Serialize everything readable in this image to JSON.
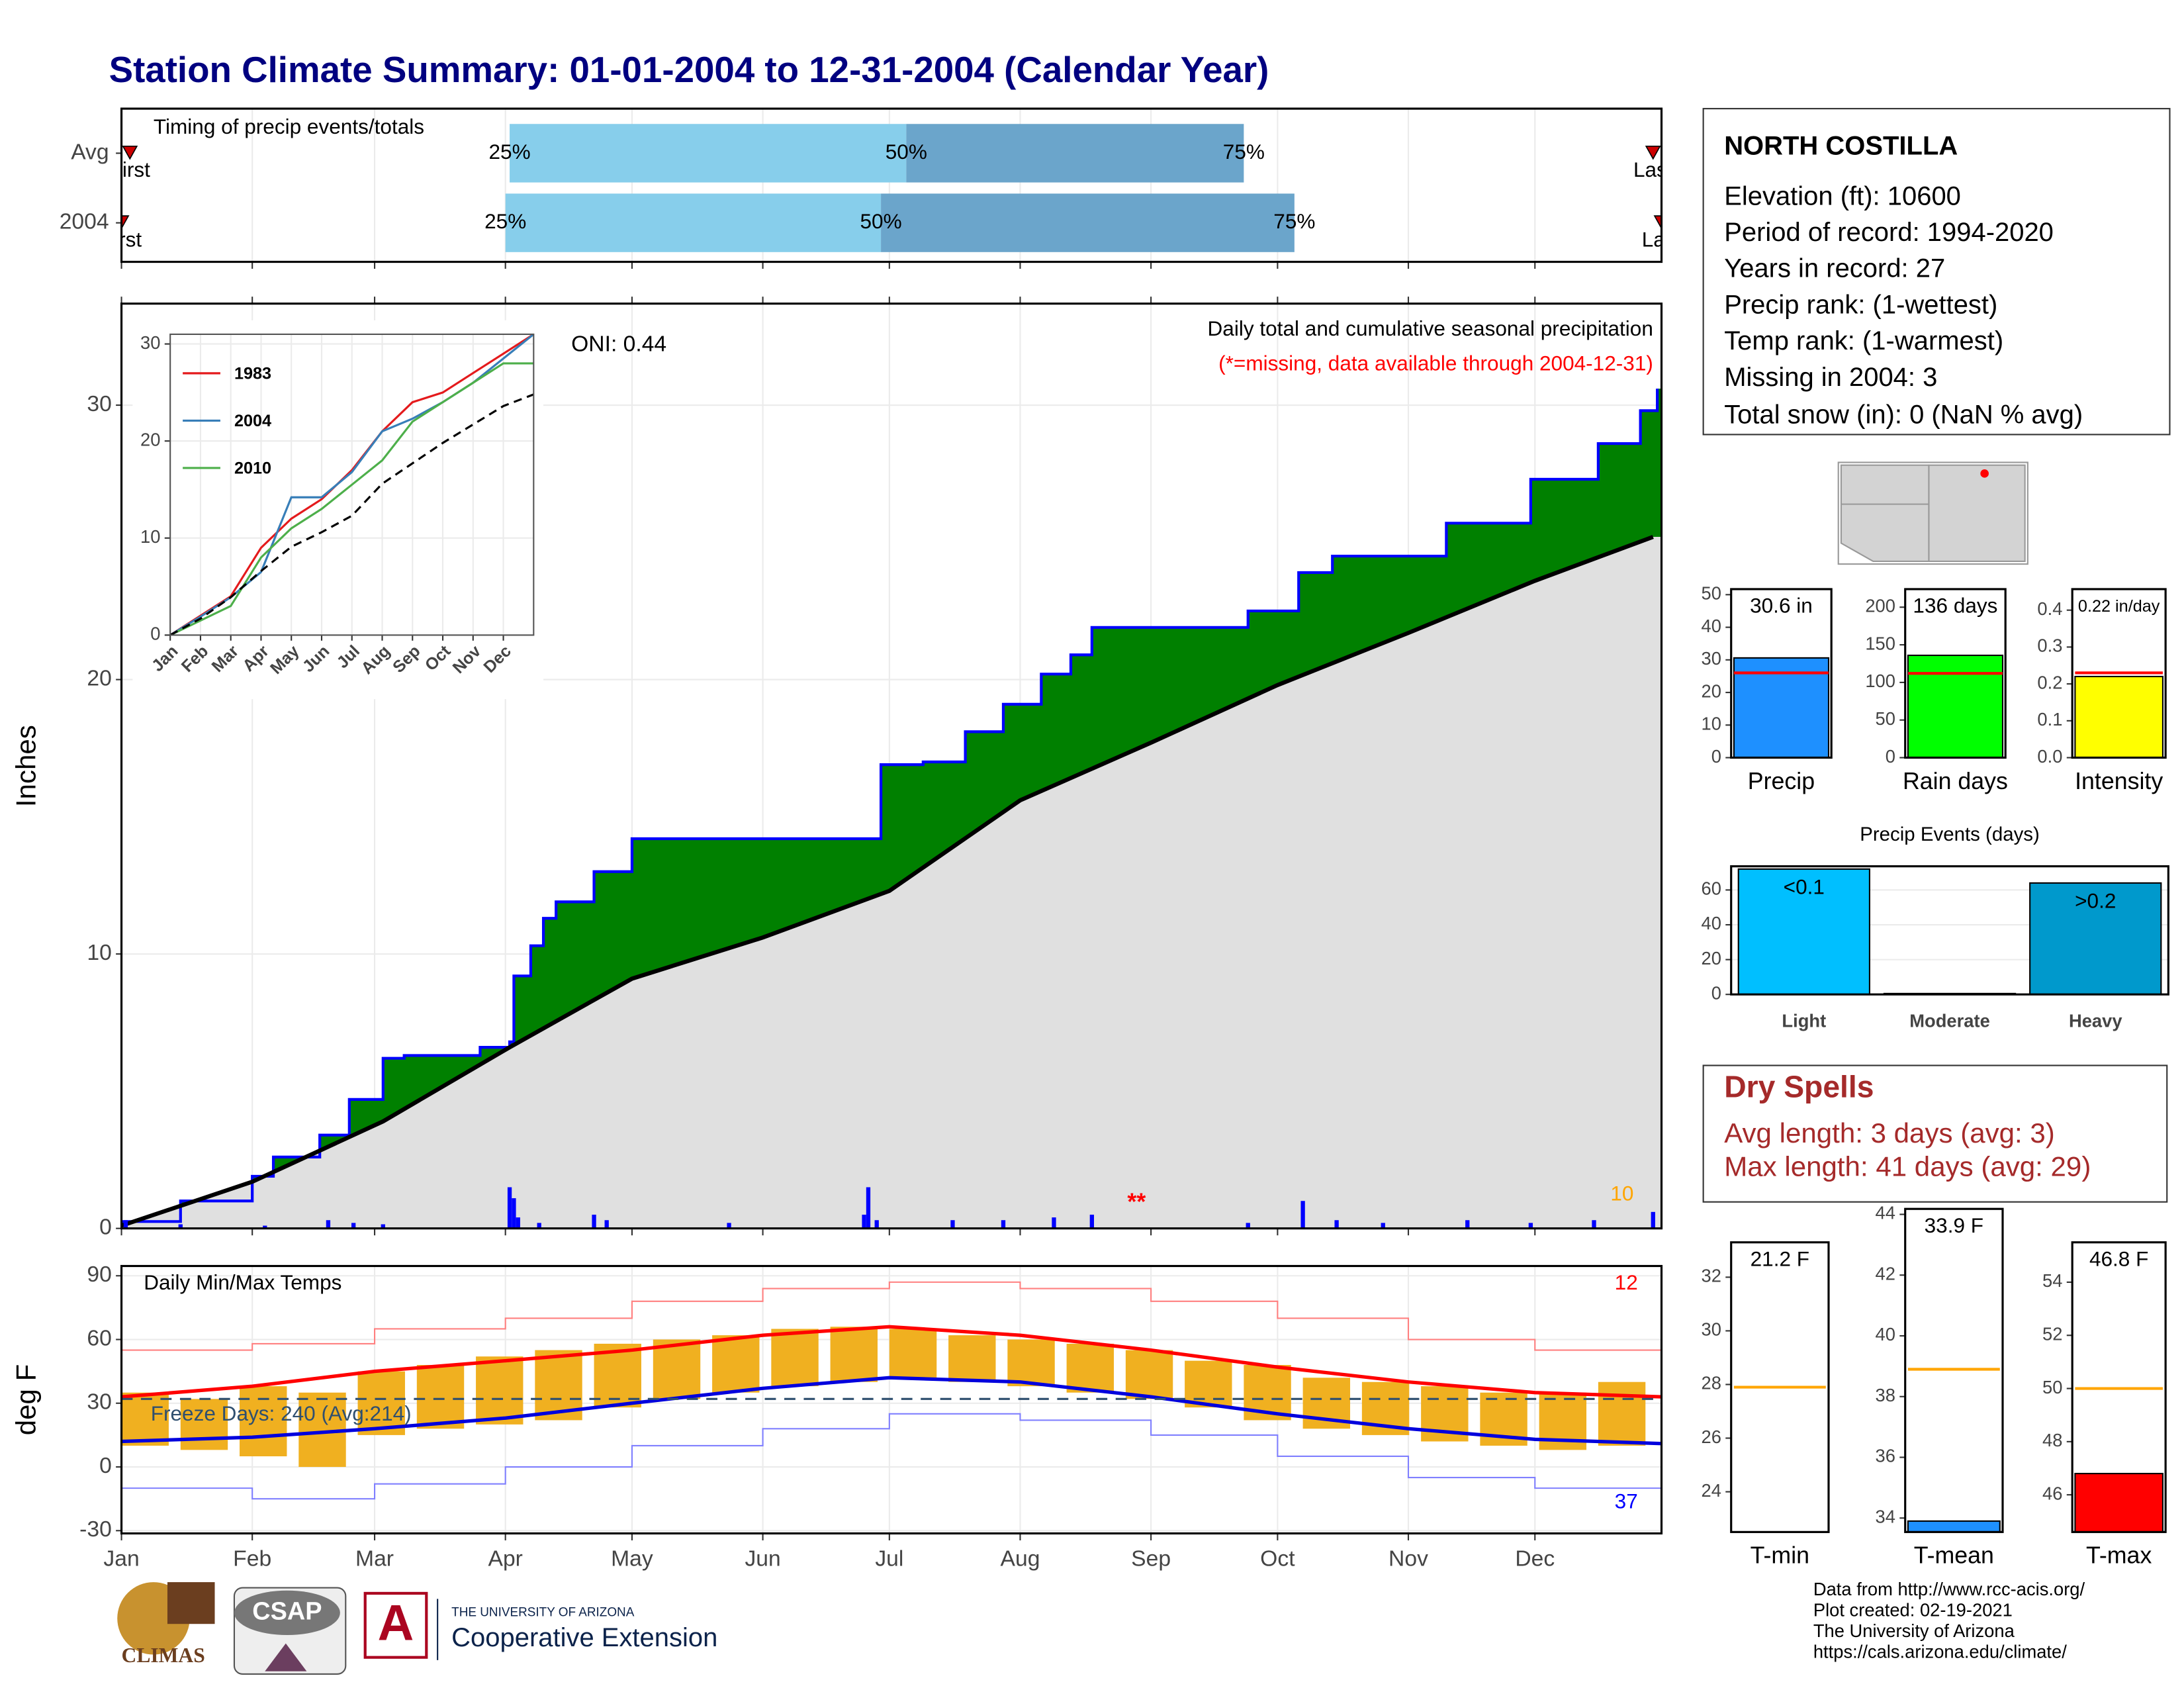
{
  "title": "Station Climate Summary: 01-01-2004 to 12-31-2004 (Calendar Year)",
  "station_info": {
    "name": "NORTH COSTILLA",
    "lines": [
      "Elevation (ft): 10600",
      "Period of record: 1994-2020",
      "Years in record: 27",
      "Precip rank:  (1-wettest)",
      "Temp rank:  (1-warmest)",
      "Missing in 2004: 3",
      "Total snow (in): 0 (NaN % avg)"
    ]
  },
  "dry_spells": {
    "title": "Dry Spells",
    "lines": [
      "Avg length: 3 days (avg: 3)",
      "Max length: 41 days (avg: 29)"
    ]
  },
  "footer": {
    "logos": [
      "CLIMAS",
      "CSAP",
      "A",
      "THE UNIVERSITY OF ARIZONA",
      "Cooperative Extension"
    ],
    "credits": [
      "Data from http://www.rcc-acis.org/",
      "Plot created: 02-19-2021",
      "The University of Arizona",
      "https://cals.arizona.edu/climate/"
    ]
  },
  "chart_data": [
    {
      "type": "timing",
      "title": "Timing of precip events/totals",
      "xlim": [
        1,
        366
      ],
      "rows": [
        {
          "name": "Avg",
          "first": 3,
          "q25": 93,
          "q50": 187,
          "q75": 267,
          "last": 364
        },
        {
          "name": "2004",
          "first": 1,
          "q25": 92,
          "q50": 181,
          "q75": 279,
          "last": 366
        }
      ],
      "quartile_labels": [
        "25%",
        "50%",
        "75%"
      ],
      "end_labels": [
        "First",
        "Last"
      ],
      "colors": [
        "#87ceeb",
        "#6ba5cb",
        "#cc0000"
      ]
    },
    {
      "type": "area",
      "annotations": [
        "ONI: 0.44",
        "Daily total and cumulative seasonal precipitation",
        "(*=missing, data available through 2004-12-31)",
        "10",
        "**"
      ],
      "y_label": "Inches",
      "xlim": [
        1,
        366
      ],
      "xticks": [
        1,
        32,
        61,
        92,
        122,
        153,
        183,
        214,
        245,
        275,
        306,
        336
      ],
      "ylim": [
        0,
        33.7
      ],
      "yticks": [
        0,
        10,
        20,
        30
      ],
      "grid": true,
      "series": [
        {
          "name": "2004",
          "color": "#008000",
          "line_color": "#0000ff",
          "x": [
            1,
            15,
            32,
            37,
            48,
            55,
            63,
            68,
            86,
            93,
            94,
            98,
            101,
            104,
            113,
            122,
            177,
            181,
            191,
            201,
            210,
            219,
            226,
            231,
            268,
            280,
            288,
            315,
            335,
            351,
            361,
            365
          ],
          "values": [
            0.25,
            1.0,
            1.9,
            2.6,
            3.4,
            4.7,
            6.2,
            6.3,
            6.6,
            6.8,
            9.2,
            10.3,
            11.3,
            11.9,
            13.0,
            14.2,
            14.2,
            16.9,
            17.0,
            18.1,
            19.1,
            20.2,
            20.9,
            21.9,
            22.5,
            23.9,
            24.5,
            25.7,
            27.3,
            28.6,
            29.8,
            30.6
          ]
        },
        {
          "name": "Avg",
          "color": "#e0e0e0",
          "line_color": "#000000",
          "x": [
            1,
            32,
            63,
            93,
            122,
            153,
            183,
            214,
            245,
            275,
            306,
            336,
            364
          ],
          "values": [
            0.1,
            1.7,
            3.9,
            6.6,
            9.1,
            10.6,
            12.3,
            15.6,
            17.7,
            19.8,
            21.7,
            23.6,
            25.2
          ]
        }
      ],
      "daily": {
        "color": "#0000ff",
        "x": [
          2,
          15,
          35,
          50,
          56,
          63,
          93,
          94,
          95,
          100,
          113,
          116,
          145,
          177,
          178,
          180,
          198,
          210,
          222,
          231,
          268,
          281,
          289,
          300,
          320,
          335,
          350,
          364
        ],
        "values": [
          0.3,
          0.15,
          0.1,
          0.3,
          0.2,
          0.15,
          1.5,
          1.1,
          0.4,
          0.2,
          0.5,
          0.3,
          0.2,
          0.5,
          1.5,
          0.3,
          0.3,
          0.3,
          0.4,
          0.5,
          0.2,
          1.0,
          0.3,
          0.2,
          0.3,
          0.2,
          0.3,
          0.6
        ]
      }
    },
    {
      "type": "line",
      "xlim": [
        0,
        12
      ],
      "xticks": [
        {
          "value": 0,
          "label": "Jan"
        },
        {
          "value": 1,
          "label": "Feb"
        },
        {
          "value": 2,
          "label": "Mar"
        },
        {
          "value": 3,
          "label": "Apr"
        },
        {
          "value": 4,
          "label": "May"
        },
        {
          "value": 5,
          "label": "Jun"
        },
        {
          "value": 6,
          "label": "Jul"
        },
        {
          "value": 7,
          "label": "Aug"
        },
        {
          "value": 8,
          "label": "Sep"
        },
        {
          "value": 9,
          "label": "Oct"
        },
        {
          "value": 10,
          "label": "Nov"
        },
        {
          "value": 11,
          "label": "Dec"
        }
      ],
      "ylim": [
        0,
        31
      ],
      "yticks": [
        0,
        10,
        20,
        30
      ],
      "x": [
        0,
        1,
        2,
        3,
        4,
        5,
        6,
        7,
        8,
        9,
        10,
        11,
        12
      ],
      "series": [
        {
          "name": "1983",
          "color": "#e41a1c",
          "values": [
            0,
            2,
            4,
            9,
            12,
            14,
            17,
            21,
            24,
            25,
            27,
            29,
            31
          ]
        },
        {
          "name": "2004",
          "color": "#377eb8",
          "values": [
            0,
            1.9,
            3.9,
            6.5,
            14.2,
            14.2,
            16.8,
            21,
            22.3,
            24,
            26,
            28.5,
            31
          ]
        },
        {
          "name": "2010",
          "color": "#4daf4a",
          "values": [
            0,
            1.5,
            3,
            8,
            11,
            13,
            15.5,
            18,
            22,
            24,
            26,
            28,
            28
          ]
        },
        {
          "color": "#000000",
          "dashed": true,
          "values": [
            0,
            1.7,
            3.9,
            6.6,
            9.1,
            10.6,
            12.3,
            15.6,
            17.7,
            19.8,
            21.7,
            23.6,
            24.8
          ]
        }
      ]
    },
    {
      "type": "temperature",
      "title": "Daily Min/Max Temps",
      "annotations": [
        "Freeze Days: 240 (Avg:214)",
        "12",
        "37"
      ],
      "y_label": "deg F",
      "xlim": [
        1,
        366
      ],
      "xticks": [
        {
          "value": 1,
          "label": "Jan"
        },
        {
          "value": 32,
          "label": "Feb"
        },
        {
          "value": 61,
          "label": "Mar"
        },
        {
          "value": 92,
          "label": "Apr"
        },
        {
          "value": 122,
          "label": "May"
        },
        {
          "value": 153,
          "label": "Jun"
        },
        {
          "value": 183,
          "label": "Jul"
        },
        {
          "value": 214,
          "label": "Aug"
        },
        {
          "value": 245,
          "label": "Sep"
        },
        {
          "value": 275,
          "label": "Oct"
        },
        {
          "value": 306,
          "label": "Nov"
        },
        {
          "value": 336,
          "label": "Dec"
        }
      ],
      "ylim": [
        -31.3,
        94.6
      ],
      "yticks": [
        -30,
        0,
        30,
        60,
        90
      ],
      "grid": true,
      "freeze_line": 32,
      "x": [
        1,
        32,
        61,
        92,
        122,
        153,
        183,
        214,
        245,
        275,
        306,
        336,
        366
      ],
      "series": [
        {
          "color": "#ff8080",
          "width": 1,
          "values": [
            55,
            58,
            65,
            70,
            78,
            84,
            87,
            84,
            78,
            70,
            60,
            55,
            53
          ]
        },
        {
          "color": "#8080ff",
          "width": 1,
          "values": [
            -10,
            -15,
            -8,
            0,
            10,
            18,
            25,
            22,
            15,
            5,
            -5,
            -10,
            -12
          ]
        },
        {
          "color": "#ff0000",
          "width": 2.5,
          "values": [
            33,
            38,
            45,
            50,
            55,
            62,
            66,
            62,
            55,
            47,
            40,
            35,
            33
          ]
        },
        {
          "color": "#0000dd",
          "width": 2.5,
          "values": [
            12,
            14,
            18,
            23,
            30,
            37,
            42,
            40,
            33,
            25,
            18,
            13,
            11
          ]
        }
      ],
      "daily": {
        "color": "#f0b020",
        "x": [
          1,
          15,
          29,
          43,
          57,
          71,
          85,
          99,
          113,
          127,
          141,
          155,
          169,
          183,
          197,
          211,
          225,
          239,
          253,
          267,
          281,
          295,
          309,
          323,
          337,
          351
        ],
        "low": [
          10,
          8,
          5,
          0,
          15,
          18,
          20,
          22,
          28,
          32,
          35,
          38,
          40,
          42,
          40,
          38,
          35,
          32,
          28,
          22,
          18,
          15,
          12,
          10,
          8,
          10
        ],
        "high": [
          35,
          32,
          38,
          35,
          45,
          48,
          52,
          55,
          58,
          60,
          62,
          65,
          66,
          65,
          62,
          60,
          58,
          55,
          50,
          48,
          42,
          40,
          38,
          35,
          35,
          40
        ]
      }
    },
    {
      "type": "bar",
      "categories": [
        "Precip"
      ],
      "values": [
        30.6
      ],
      "value_labels": [
        "30.6 in"
      ],
      "color": "#1e90ff",
      "normal": 26,
      "normal_color": "#ff0000",
      "ylim": [
        0,
        51.7
      ],
      "yticks": [
        0,
        10,
        20,
        30,
        40,
        50
      ]
    },
    {
      "type": "bar",
      "categories": [
        "Rain days"
      ],
      "values": [
        136
      ],
      "value_labels": [
        "136 days"
      ],
      "color": "#00ff00",
      "normal": 112,
      "normal_color": "#ff0000",
      "ylim": [
        0,
        224
      ],
      "yticks": [
        0,
        50,
        100,
        150,
        200
      ]
    },
    {
      "type": "bar",
      "categories": [
        "Intensity"
      ],
      "values": [
        0.22
      ],
      "value_labels": [
        "0.22 in/day"
      ],
      "color": "#ffff00",
      "normal": 0.23,
      "normal_color": "#ff0000",
      "ylim": [
        0,
        0.457
      ],
      "yticks": [
        {
          "value": 0,
          "label": "0.0"
        },
        0.1,
        0.2,
        0.3,
        0.4
      ]
    },
    {
      "type": "bar",
      "title": "Precip Events (days)",
      "categories": [
        "Light",
        "Moderate",
        "Heavy"
      ],
      "values": [
        72,
        0.5,
        64
      ],
      "bar_labels": [
        "<0.1",
        null,
        ">0.2"
      ],
      "colors": [
        "#00bfff",
        "#1b7fb0",
        "#0099cc"
      ],
      "ylim": [
        0,
        73.6
      ],
      "yticks": [
        0,
        20,
        40,
        60
      ],
      "grid": true
    },
    {
      "type": "bar",
      "categories": [
        "T-min"
      ],
      "values": [
        21.2
      ],
      "value_labels": [
        "21.2 F"
      ],
      "color": "#1e90ff",
      "normal": 27.9,
      "normal_color": "#ffa500",
      "ylim": [
        22.5,
        33.3
      ],
      "yticks": [
        24,
        26,
        28,
        30,
        32
      ]
    },
    {
      "type": "bar",
      "categories": [
        "T-mean"
      ],
      "values": [
        33.9
      ],
      "value_labels": [
        "33.9 F"
      ],
      "color": "#1e90ff",
      "normal": 38.9,
      "normal_color": "#ffa500",
      "ylim": [
        33.54,
        44.18
      ],
      "yticks": [
        34,
        36,
        38,
        40,
        42,
        44
      ]
    },
    {
      "type": "bar",
      "categories": [
        "T-max"
      ],
      "values": [
        46.8
      ],
      "value_labels": [
        "46.8 F"
      ],
      "color": "#ff0000",
      "normal": 50.0,
      "normal_color": "#ffa500",
      "ylim": [
        44.6,
        55.5
      ],
      "yticks": [
        46,
        48,
        50,
        52,
        54
      ]
    }
  ]
}
